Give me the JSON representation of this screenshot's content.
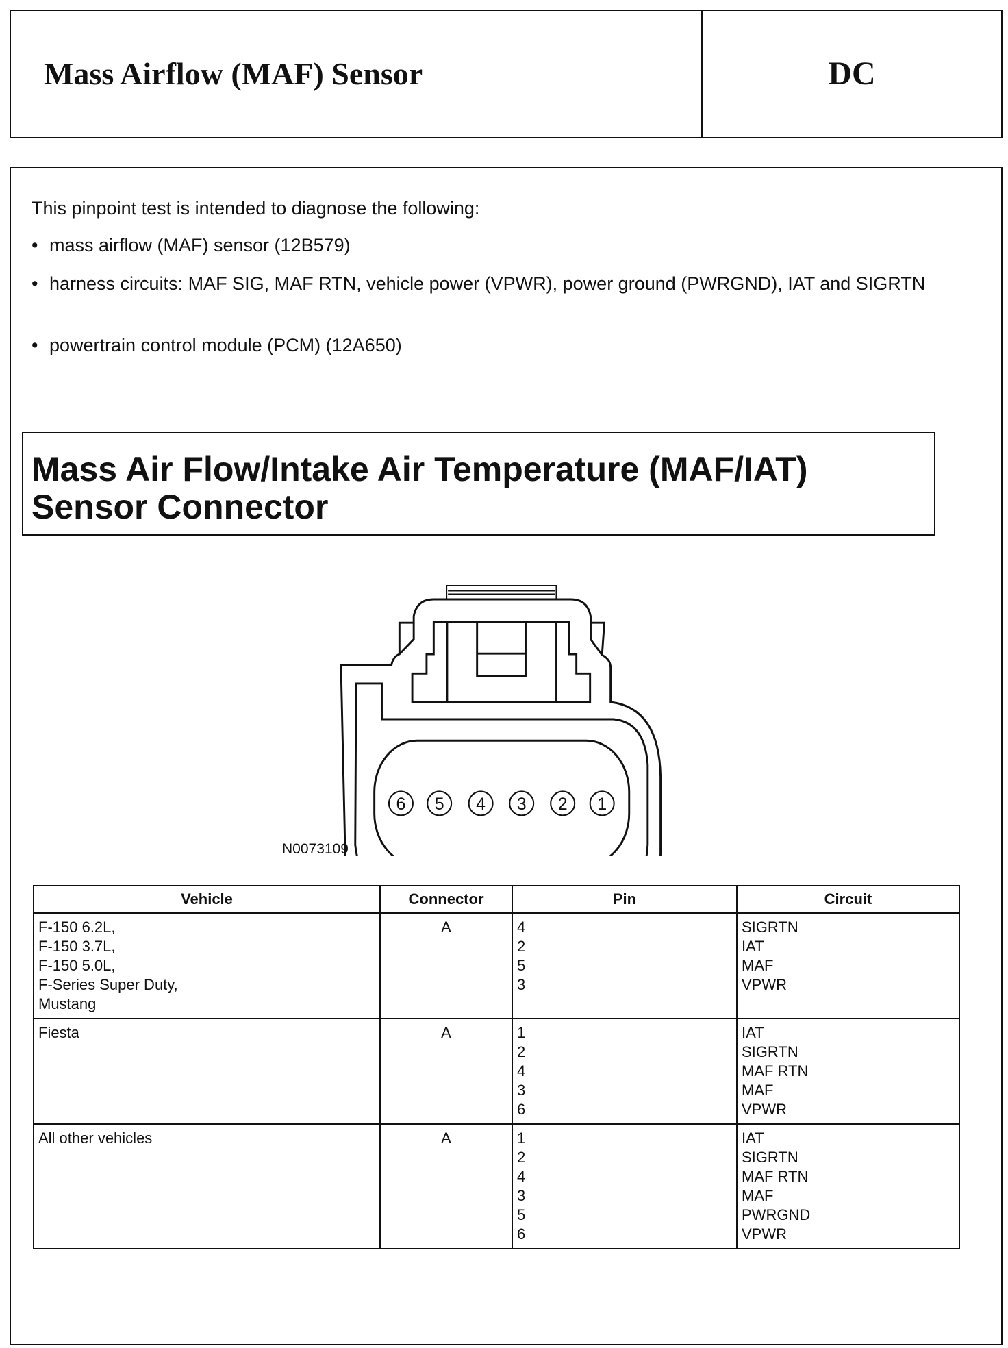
{
  "header": {
    "title": "Mass Airflow (MAF) Sensor",
    "code": "DC"
  },
  "intro": {
    "lead": "This pinpoint test is intended to diagnose the following:",
    "bullets": [
      "mass airflow (MAF) sensor (12B579)",
      "harness circuits: MAF SIG, MAF RTN, vehicle power (VPWR), power ground (PWRGND), IAT and SIGRTN",
      "powertrain control module (PCM) (12A650)"
    ]
  },
  "connector": {
    "title_line1": "Mass Air Flow/Intake Air Temperature (MAF/IAT)",
    "title_line2": "Sensor Connector",
    "pins": [
      "6",
      "5",
      "4",
      "3",
      "2",
      "1"
    ],
    "figure_id": "N0073109"
  },
  "table": {
    "headers": [
      "Vehicle",
      "Connector",
      "Pin",
      "Circuit"
    ],
    "rows": [
      {
        "vehicle": [
          "F-150 6.2L,",
          "F-150 3.7L,",
          "F-150 5.0L,",
          "F-Series Super Duty,",
          "Mustang"
        ],
        "connector": "A",
        "pins": [
          "4",
          "2",
          "5",
          "3"
        ],
        "circuits": [
          "SIGRTN",
          "IAT",
          "MAF",
          "VPWR"
        ]
      },
      {
        "vehicle": [
          "Fiesta"
        ],
        "connector": "A",
        "pins": [
          "1",
          "2",
          "4",
          "3",
          "6"
        ],
        "circuits": [
          "IAT",
          "SIGRTN",
          "MAF RTN",
          "MAF",
          "VPWR"
        ]
      },
      {
        "vehicle": [
          "All other vehicles"
        ],
        "connector": "A",
        "pins": [
          "1",
          "2",
          "4",
          "3",
          "5",
          "6"
        ],
        "circuits": [
          "IAT",
          "SIGRTN",
          "MAF RTN",
          "MAF",
          "PWRGND",
          "VPWR"
        ]
      }
    ]
  }
}
